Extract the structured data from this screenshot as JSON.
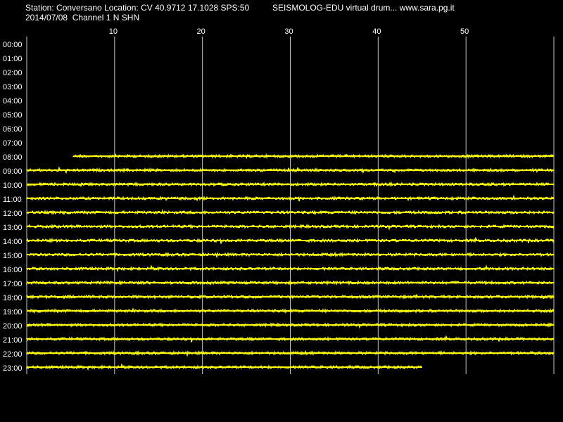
{
  "header": {
    "station_line": "Station: Conversano Location: CV 40.9712 17.1028 SPS:50",
    "program_line": "SEISMOLOG-EDU virtual drum... www.sara.pg.it",
    "date_line": "2014/07/08  Channel 1 N SHN"
  },
  "colors": {
    "background": "#000000",
    "trace": "#ffff00",
    "grid": "#c8c8c8",
    "text": "#ffffff"
  },
  "chart_data": {
    "type": "line",
    "title": "",
    "xlabel": "",
    "ylabel": "",
    "xlim": [
      0,
      60
    ],
    "x_ticks": [
      "10",
      "20",
      "30",
      "40",
      "50"
    ],
    "x_tick_values": [
      10,
      20,
      30,
      40,
      50
    ],
    "grid": "vertical",
    "row_labels": [
      "00:00",
      "01:00",
      "02:00",
      "03:00",
      "04:00",
      "05:00",
      "06:00",
      "07:00",
      "08:00",
      "09:00",
      "10:00",
      "11:00",
      "12:00",
      "13:00",
      "14:00",
      "15:00",
      "16:00",
      "17:00",
      "18:00",
      "19:00",
      "20:00",
      "21:00",
      "22:00",
      "23:00"
    ],
    "traces": [
      {
        "hour": "08:00",
        "start_min": 5.3,
        "end_min": 60
      },
      {
        "hour": "09:00",
        "start_min": 0,
        "end_min": 60
      },
      {
        "hour": "10:00",
        "start_min": 0,
        "end_min": 60
      },
      {
        "hour": "11:00",
        "start_min": 0,
        "end_min": 60
      },
      {
        "hour": "12:00",
        "start_min": 0,
        "end_min": 60
      },
      {
        "hour": "13:00",
        "start_min": 0,
        "end_min": 60
      },
      {
        "hour": "14:00",
        "start_min": 0,
        "end_min": 60
      },
      {
        "hour": "15:00",
        "start_min": 0,
        "end_min": 60
      },
      {
        "hour": "16:00",
        "start_min": 0,
        "end_min": 60
      },
      {
        "hour": "17:00",
        "start_min": 0,
        "end_min": 60
      },
      {
        "hour": "18:00",
        "start_min": 0,
        "end_min": 60
      },
      {
        "hour": "19:00",
        "start_min": 0,
        "end_min": 60
      },
      {
        "hour": "20:00",
        "start_min": 0,
        "end_min": 60
      },
      {
        "hour": "21:00",
        "start_min": 0,
        "end_min": 60
      },
      {
        "hour": "22:00",
        "start_min": 0,
        "end_min": 60
      },
      {
        "hour": "23:00",
        "start_min": 0,
        "end_min": 45
      }
    ]
  }
}
